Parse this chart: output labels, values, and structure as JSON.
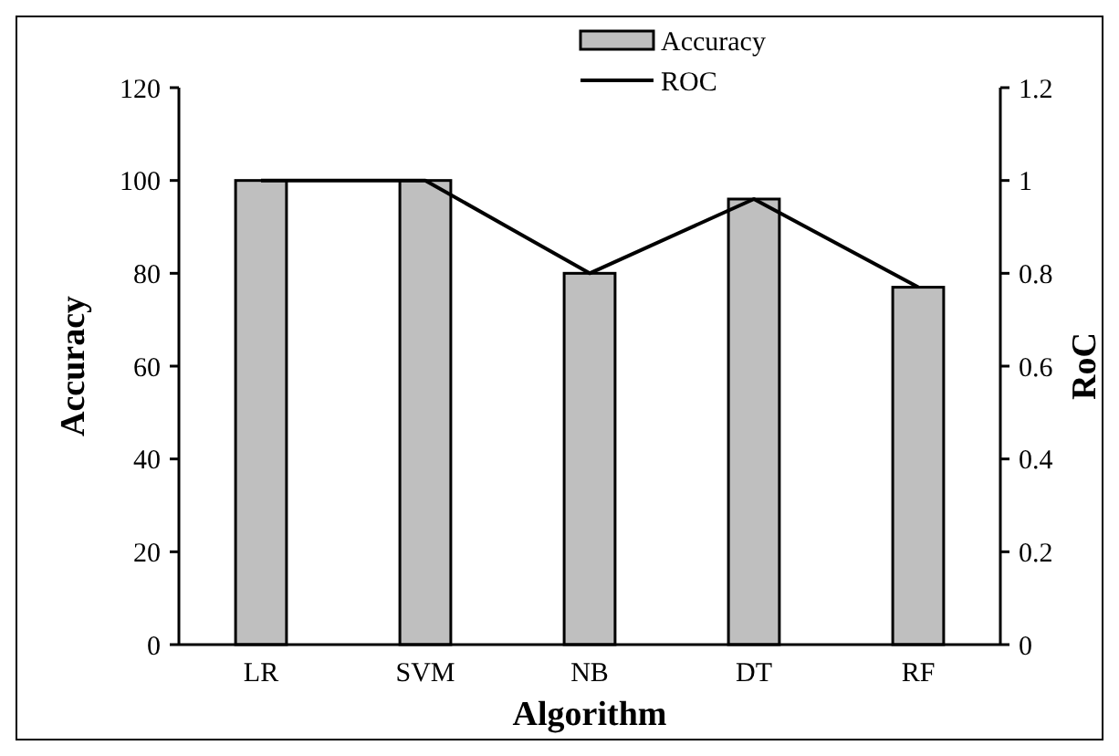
{
  "chart_data": {
    "type": "bar",
    "xlabel": "Algorithm",
    "ylabel": "Accuracy",
    "y2label": "RoC",
    "categories": [
      "LR",
      "SVM",
      "NB",
      "DT",
      "RF"
    ],
    "series": [
      {
        "name": "Accuracy",
        "color": "#bfbfbf",
        "values": [
          100,
          100,
          80,
          96,
          77
        ]
      },
      {
        "name": "ROC",
        "type": "line",
        "axis": "y2",
        "color": "#000000",
        "values": [
          1,
          1,
          0.8,
          0.96,
          0.77
        ]
      }
    ],
    "ylim": [
      0,
      120
    ],
    "yticks": [
      0,
      20,
      40,
      60,
      80,
      100,
      120
    ],
    "y2lim": [
      0,
      1.2
    ],
    "y2ticks": [
      0,
      0.2,
      0.4,
      0.6,
      0.8,
      1,
      1.2
    ],
    "legend": "top",
    "grid": false,
    "marker": "none",
    "line_style": "solid"
  }
}
